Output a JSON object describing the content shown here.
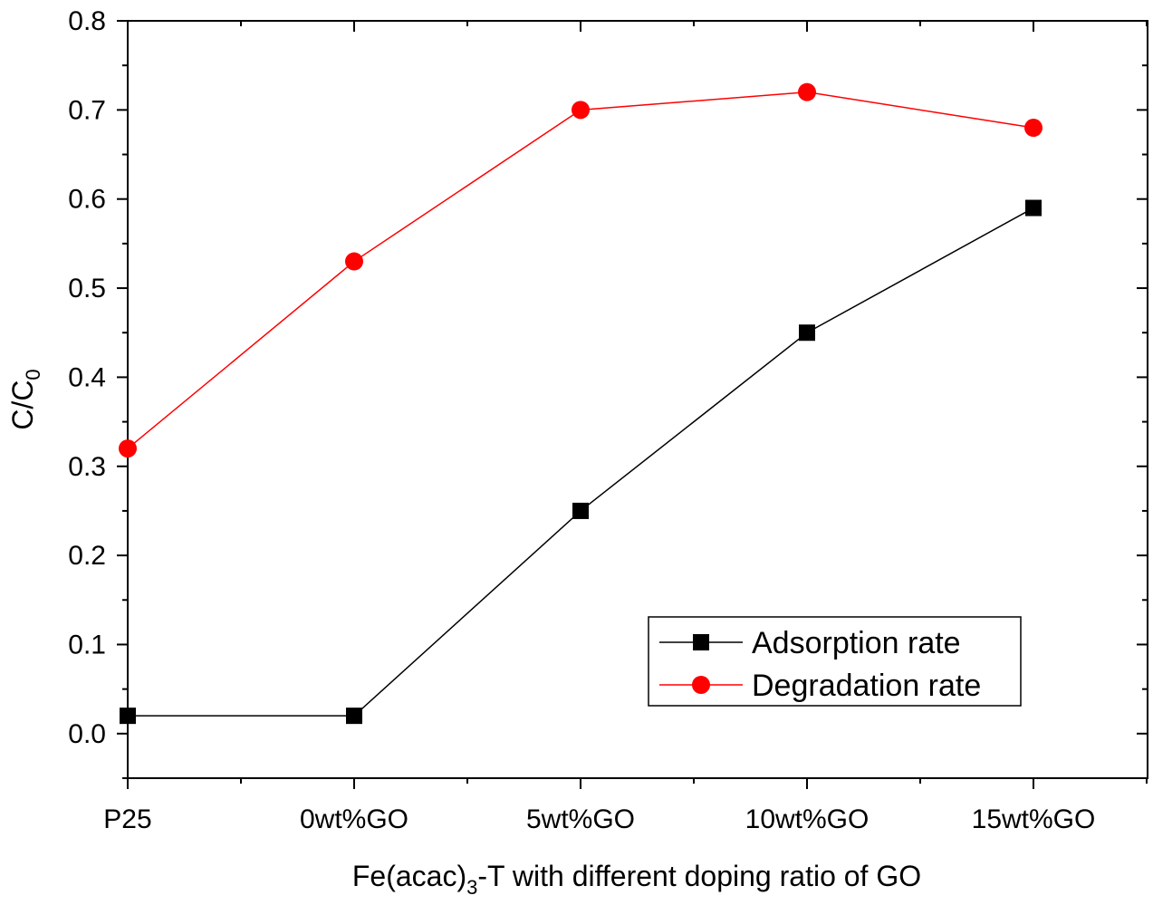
{
  "chart_data": {
    "type": "line",
    "categories": [
      "P25",
      "0wt%GO",
      "5wt%GO",
      "10wt%GO",
      "15wt%GO"
    ],
    "series": [
      {
        "name": "Adsorption rate",
        "values": [
          0.02,
          0.02,
          0.25,
          0.45,
          0.59
        ],
        "color": "#000000",
        "marker": "square"
      },
      {
        "name": "Degradation rate",
        "values": [
          0.32,
          0.53,
          0.7,
          0.72,
          0.68
        ],
        "color": "#ff0000",
        "marker": "circle"
      }
    ],
    "ylabel": {
      "main": "C/C",
      "sub": "0"
    },
    "xlabel": {
      "prefix": "Fe(acac)",
      "sub": "3",
      "suffix": "-T with different doping ratio of GO"
    },
    "ylim": [
      -0.05,
      0.8
    ],
    "yticks": [
      "0.0",
      "0.1",
      "0.2",
      "0.3",
      "0.4",
      "0.5",
      "0.6",
      "0.7",
      "0.8"
    ],
    "legend_position": "lower-right",
    "grid": false
  }
}
